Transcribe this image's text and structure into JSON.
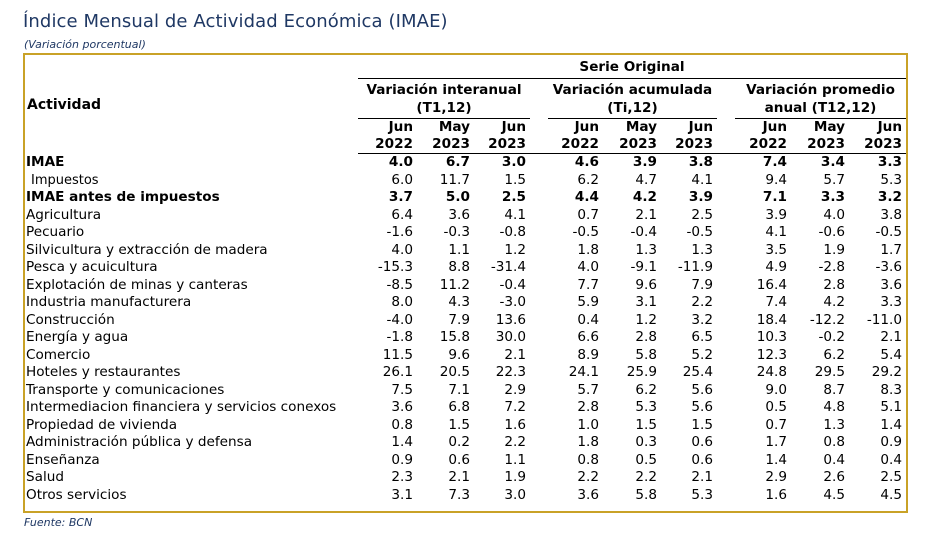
{
  "header": {
    "title": "Índice Mensual de Actividad Económica (IMAE)",
    "subtitle": "(Variación porcentual)"
  },
  "table": {
    "activity_header": "Actividad",
    "serie_label": "Serie Original",
    "groups": [
      {
        "line1": "Variación interanual",
        "line2": "(T1,12)"
      },
      {
        "line1": "Variación acumulada",
        "line2": "(Ti,12)"
      },
      {
        "line1": "Variación promedio",
        "line2": "anual (T12,12)"
      }
    ],
    "period_months": [
      "Jun",
      "May",
      "Jun"
    ],
    "period_years": [
      "2022",
      "2023",
      "2023"
    ],
    "rows": [
      {
        "label": "IMAE",
        "style": "bold",
        "values": [
          "4.0",
          "6.7",
          "3.0",
          "4.6",
          "3.9",
          "3.8",
          "7.4",
          "3.4",
          "3.3"
        ]
      },
      {
        "label": "Impuestos",
        "style": "small",
        "values": [
          "6.0",
          "11.7",
          "1.5",
          "6.2",
          "4.7",
          "4.1",
          "9.4",
          "5.7",
          "5.3"
        ]
      },
      {
        "label": "IMAE antes de impuestos",
        "style": "bold",
        "values": [
          "3.7",
          "5.0",
          "2.5",
          "4.4",
          "4.2",
          "3.9",
          "7.1",
          "3.3",
          "3.2"
        ]
      },
      {
        "label": "Agricultura",
        "style": "normal",
        "values": [
          "6.4",
          "3.6",
          "4.1",
          "0.7",
          "2.1",
          "2.5",
          "3.9",
          "4.0",
          "3.8"
        ]
      },
      {
        "label": "Pecuario",
        "style": "normal",
        "values": [
          "-1.6",
          "-0.3",
          "-0.8",
          "-0.5",
          "-0.4",
          "-0.5",
          "4.1",
          "-0.6",
          "-0.5"
        ]
      },
      {
        "label": "Silvicultura y extracción de madera",
        "style": "normal",
        "values": [
          "4.0",
          "1.1",
          "1.2",
          "1.8",
          "1.3",
          "1.3",
          "3.5",
          "1.9",
          "1.7"
        ]
      },
      {
        "label": "Pesca y acuicultura",
        "style": "normal",
        "values": [
          "-15.3",
          "8.8",
          "-31.4",
          "4.0",
          "-9.1",
          "-11.9",
          "4.9",
          "-2.8",
          "-3.6"
        ]
      },
      {
        "label": "Explotación de minas y canteras",
        "style": "normal",
        "values": [
          "-8.5",
          "11.2",
          "-0.4",
          "7.7",
          "9.6",
          "7.9",
          "16.4",
          "2.8",
          "3.6"
        ]
      },
      {
        "label": "Industria manufacturera",
        "style": "normal",
        "values": [
          "8.0",
          "4.3",
          "-3.0",
          "5.9",
          "3.1",
          "2.2",
          "7.4",
          "4.2",
          "3.3"
        ]
      },
      {
        "label": "Construcción",
        "style": "normal",
        "values": [
          "-4.0",
          "7.9",
          "13.6",
          "0.4",
          "1.2",
          "3.2",
          "18.4",
          "-12.2",
          "-11.0"
        ]
      },
      {
        "label": "Energía y agua",
        "style": "normal",
        "values": [
          "-1.8",
          "15.8",
          "30.0",
          "6.6",
          "2.8",
          "6.5",
          "10.3",
          "-0.2",
          "2.1"
        ]
      },
      {
        "label": "Comercio",
        "style": "normal",
        "values": [
          "11.5",
          "9.6",
          "2.1",
          "8.9",
          "5.8",
          "5.2",
          "12.3",
          "6.2",
          "5.4"
        ]
      },
      {
        "label": "Hoteles y restaurantes",
        "style": "normal",
        "values": [
          "26.1",
          "20.5",
          "22.3",
          "24.1",
          "25.9",
          "25.4",
          "24.8",
          "29.5",
          "29.2"
        ]
      },
      {
        "label": "Transporte y comunicaciones",
        "style": "normal",
        "values": [
          "7.5",
          "7.1",
          "2.9",
          "5.7",
          "6.2",
          "5.6",
          "9.0",
          "8.7",
          "8.3"
        ]
      },
      {
        "label": "Intermediacion financiera y servicios conexos",
        "style": "normal",
        "values": [
          "3.6",
          "6.8",
          "7.2",
          "2.8",
          "5.3",
          "5.6",
          "0.5",
          "4.8",
          "5.1"
        ]
      },
      {
        "label": "Propiedad de vivienda",
        "style": "normal",
        "values": [
          "0.8",
          "1.5",
          "1.6",
          "1.0",
          "1.5",
          "1.5",
          "0.7",
          "1.3",
          "1.4"
        ]
      },
      {
        "label": "Administración pública y defensa",
        "style": "normal",
        "values": [
          "1.4",
          "0.2",
          "2.2",
          "1.8",
          "0.3",
          "0.6",
          "1.7",
          "0.8",
          "0.9"
        ]
      },
      {
        "label": "Enseñanza",
        "style": "normal",
        "values": [
          "0.9",
          "0.6",
          "1.1",
          "0.8",
          "0.5",
          "0.6",
          "1.4",
          "0.4",
          "0.4"
        ]
      },
      {
        "label": "Salud",
        "style": "normal",
        "values": [
          "2.3",
          "2.1",
          "1.9",
          "2.2",
          "2.2",
          "2.1",
          "2.9",
          "2.6",
          "2.5"
        ]
      },
      {
        "label": "Otros servicios",
        "style": "normal",
        "values": [
          "3.1",
          "7.3",
          "3.0",
          "3.6",
          "5.8",
          "5.3",
          "1.6",
          "4.5",
          "4.5"
        ]
      }
    ]
  },
  "footer": {
    "source": "Fuente: BCN"
  }
}
